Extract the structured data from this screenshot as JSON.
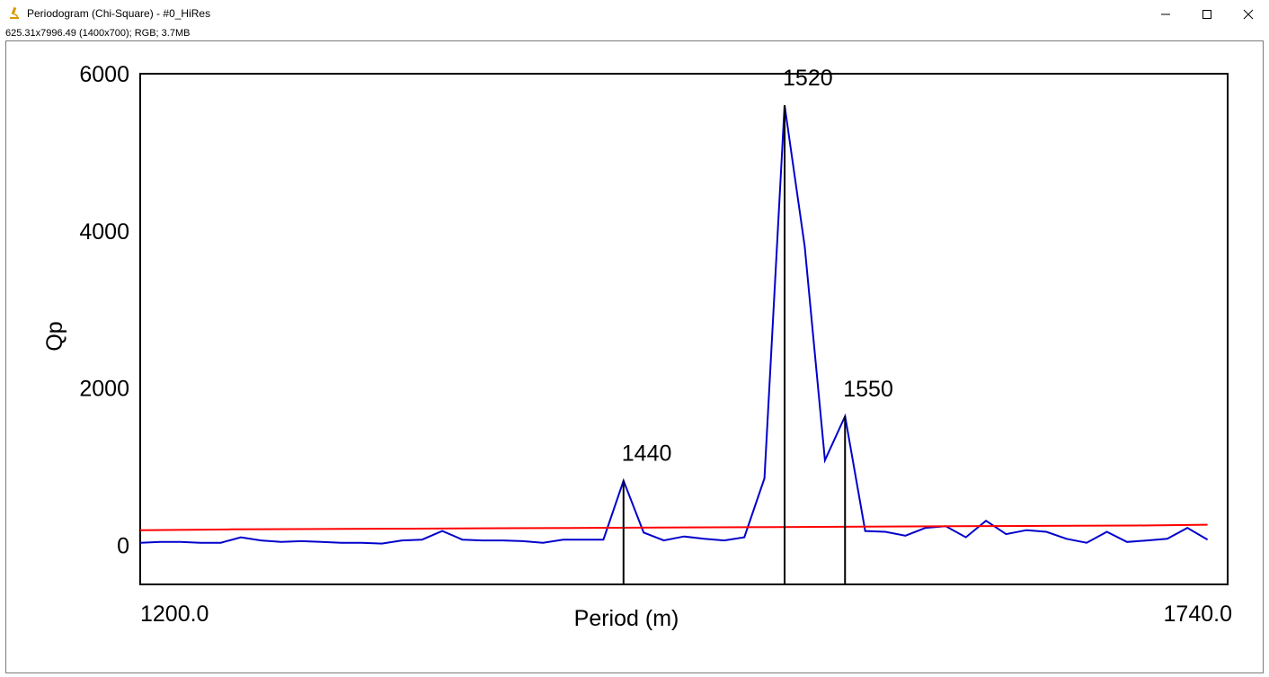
{
  "window": {
    "title": "Periodogram (Chi-Square) - #0_HiRes",
    "info": "625.31x7996.49  (1400x700); RGB; 3.7MB",
    "minimize_icon": "minimize-icon",
    "maximize_icon": "maximize-icon",
    "close_icon": "close-icon",
    "app_icon": "microscope-icon"
  },
  "colors": {
    "data_line": "#0000cc",
    "threshold_line": "#ff0000",
    "peak_lines": "#000000",
    "frame": "#000000"
  },
  "chart_data": {
    "type": "line",
    "title": "",
    "xlabel": "Period (m)",
    "ylabel": "Qp",
    "xlim": [
      1200,
      1740
    ],
    "ylim": [
      -500,
      6000
    ],
    "x_tick_labels": [
      "1200.0",
      "1740.0"
    ],
    "y_ticks": [
      0,
      2000,
      4000,
      6000
    ],
    "grid": false,
    "series": [
      {
        "role": "data",
        "color": "#0000cc",
        "x": [
          1200,
          1210,
          1220,
          1230,
          1240,
          1250,
          1260,
          1270,
          1280,
          1290,
          1300,
          1310,
          1320,
          1330,
          1340,
          1350,
          1360,
          1370,
          1380,
          1390,
          1400,
          1410,
          1420,
          1430,
          1440,
          1450,
          1460,
          1470,
          1480,
          1490,
          1500,
          1510,
          1520,
          1530,
          1540,
          1550,
          1560,
          1570,
          1580,
          1590,
          1600,
          1610,
          1620,
          1630,
          1640,
          1650,
          1660,
          1670,
          1680,
          1690,
          1700,
          1710,
          1720,
          1730
        ],
        "y": [
          30,
          40,
          40,
          30,
          30,
          100,
          60,
          40,
          50,
          40,
          30,
          30,
          20,
          60,
          70,
          180,
          70,
          60,
          60,
          50,
          30,
          70,
          70,
          70,
          820,
          160,
          60,
          110,
          80,
          60,
          100,
          850,
          5600,
          3800,
          1080,
          1640,
          180,
          170,
          120,
          220,
          240,
          100,
          310,
          140,
          190,
          170,
          80,
          30,
          170,
          40,
          60,
          80,
          220,
          70
        ]
      },
      {
        "role": "threshold",
        "color": "#ff0000",
        "x": [
          1200,
          1245,
          1290,
          1335,
          1380,
          1425,
          1470,
          1515,
          1560,
          1605,
          1650,
          1695,
          1730
        ],
        "y": [
          190,
          200,
          205,
          210,
          215,
          220,
          225,
          230,
          235,
          240,
          245,
          250,
          260
        ]
      }
    ],
    "peaks": [
      {
        "x": 1440,
        "y": 820,
        "label": "1440"
      },
      {
        "x": 1520,
        "y": 5600,
        "label": "1520"
      },
      {
        "x": 1550,
        "y": 1640,
        "label": "1550"
      }
    ]
  }
}
